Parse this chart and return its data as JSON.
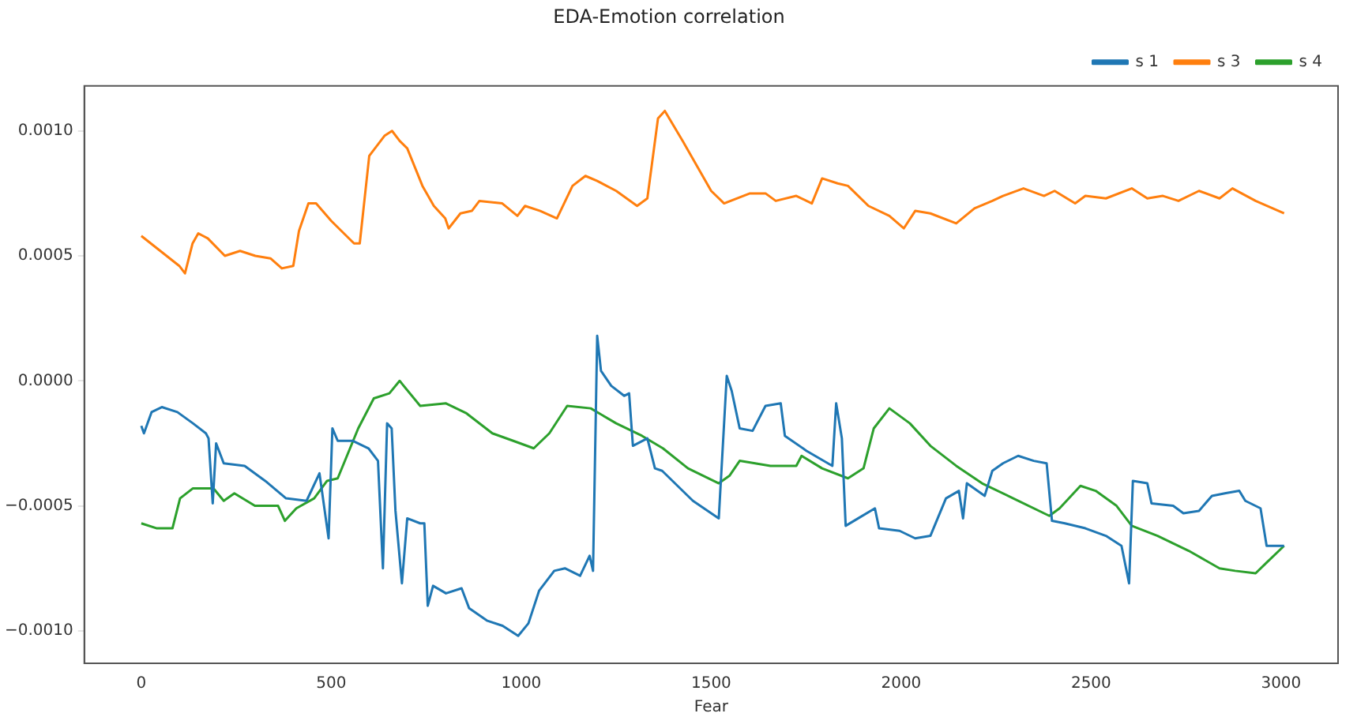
{
  "chart_data": {
    "type": "line",
    "title": "EDA-Emotion correlation",
    "xlabel": "Fear",
    "xlim": [
      -150,
      3150
    ],
    "xticks": [
      0,
      500,
      1000,
      1500,
      2000,
      2500,
      3000
    ],
    "ylim": [
      -0.00113,
      0.00118
    ],
    "yticks": [
      {
        "value": -0.001,
        "label": "−0.0010"
      },
      {
        "value": -0.0005,
        "label": "−0.0005"
      },
      {
        "value": 0,
        "label": "0.0000"
      },
      {
        "value": 0.0005,
        "label": "0.0005"
      },
      {
        "value": 0.001,
        "label": "0.0010"
      }
    ],
    "grid": false,
    "legend": "top right",
    "marker": "none",
    "line_style": "solid",
    "series": [
      {
        "name": "s 1",
        "color": "#1f77b4",
        "x": [
          0,
          7,
          27,
          54,
          95,
          136,
          170,
          177,
          188,
          197,
          217,
          272,
          326,
          381,
          435,
          469,
          493,
          503,
          517,
          557,
          598,
          623,
          636,
          647,
          659,
          669,
          686,
          700,
          734,
          745,
          754,
          768,
          802,
          843,
          863,
          911,
          951,
          992,
          1019,
          1047,
          1087,
          1115,
          1155,
          1180,
          1189,
          1200,
          1210,
          1237,
          1271,
          1284,
          1294,
          1332,
          1352,
          1371,
          1452,
          1520,
          1541,
          1554,
          1575,
          1609,
          1643,
          1683,
          1694,
          1751,
          1819,
          1829,
          1844,
          1854,
          1887,
          1931,
          1942,
          1996,
          2037,
          2077,
          2118,
          2152,
          2163,
          2173,
          2220,
          2240,
          2268,
          2308,
          2349,
          2383,
          2397,
          2431,
          2485,
          2539,
          2580,
          2600,
          2610,
          2648,
          2659,
          2716,
          2743,
          2784,
          2818,
          2852,
          2890,
          2906,
          2946,
          2962,
          3008
        ],
        "values": [
          -0.00018,
          -0.00021,
          -0.000125,
          -0.000105,
          -0.000125,
          -0.00017,
          -0.00021,
          -0.00023,
          -0.00049,
          -0.00025,
          -0.00033,
          -0.00034,
          -0.0004,
          -0.00047,
          -0.00048,
          -0.00037,
          -0.00063,
          -0.00019,
          -0.00024,
          -0.00024,
          -0.00027,
          -0.00032,
          -0.00075,
          -0.00017,
          -0.00019,
          -0.00052,
          -0.00081,
          -0.00055,
          -0.00057,
          -0.00057,
          -0.0009,
          -0.00082,
          -0.00085,
          -0.00083,
          -0.00091,
          -0.00096,
          -0.00098,
          -0.00102,
          -0.00097,
          -0.00084,
          -0.00076,
          -0.00075,
          -0.00078,
          -0.0007,
          -0.00076,
          0.00018,
          4e-05,
          -2e-05,
          -6e-05,
          -5e-05,
          -0.00026,
          -0.00023,
          -0.00035,
          -0.00036,
          -0.00048,
          -0.00055,
          2e-05,
          -4e-05,
          -0.00019,
          -0.0002,
          -0.0001,
          -9e-05,
          -0.00022,
          -0.00028,
          -0.00034,
          -9e-05,
          -0.00023,
          -0.00058,
          -0.00055,
          -0.00051,
          -0.00059,
          -0.0006,
          -0.00063,
          -0.00062,
          -0.00047,
          -0.00044,
          -0.00055,
          -0.00041,
          -0.00046,
          -0.00036,
          -0.00033,
          -0.0003,
          -0.00032,
          -0.00033,
          -0.00056,
          -0.00057,
          -0.00059,
          -0.00062,
          -0.00066,
          -0.00081,
          -0.0004,
          -0.00041,
          -0.00049,
          -0.0005,
          -0.00053,
          -0.00052,
          -0.00046,
          -0.00045,
          -0.00044,
          -0.00048,
          -0.00051,
          -0.00066,
          -0.00066
        ]
      },
      {
        "name": "s 3",
        "color": "#ff7f0e",
        "x": [
          0,
          50,
          100,
          115,
          135,
          150,
          175,
          220,
          260,
          300,
          340,
          370,
          400,
          415,
          440,
          460,
          500,
          540,
          560,
          575,
          600,
          640,
          660,
          680,
          700,
          740,
          770,
          800,
          809,
          840,
          870,
          890,
          950,
          990,
          1010,
          1050,
          1094,
          1135,
          1169,
          1200,
          1250,
          1305,
          1332,
          1360,
          1378,
          1425,
          1500,
          1534,
          1602,
          1643,
          1670,
          1724,
          1765,
          1792,
          1833,
          1860,
          1914,
          1969,
          2007,
          2037,
          2077,
          2145,
          2193,
          2240,
          2268,
          2322,
          2376,
          2404,
          2458,
          2485,
          2539,
          2607,
          2648,
          2689,
          2730,
          2784,
          2838,
          2872,
          2933,
          3008
        ],
        "values": [
          0.00058,
          0.00052,
          0.00046,
          0.00043,
          0.00055,
          0.00059,
          0.00057,
          0.0005,
          0.00052,
          0.0005,
          0.00049,
          0.00045,
          0.00046,
          0.0006,
          0.00071,
          0.00071,
          0.00064,
          0.00058,
          0.00055,
          0.00055,
          0.0009,
          0.00098,
          0.001,
          0.00096,
          0.00093,
          0.00078,
          0.0007,
          0.00065,
          0.00061,
          0.00067,
          0.00068,
          0.00072,
          0.00071,
          0.00066,
          0.0007,
          0.00068,
          0.00065,
          0.00078,
          0.00082,
          0.0008,
          0.00076,
          0.0007,
          0.00073,
          0.00105,
          0.00108,
          0.00096,
          0.00076,
          0.00071,
          0.00075,
          0.00075,
          0.00072,
          0.00074,
          0.00071,
          0.00081,
          0.00079,
          0.00078,
          0.0007,
          0.00066,
          0.00061,
          0.00068,
          0.00067,
          0.00063,
          0.00069,
          0.00072,
          0.00074,
          0.00077,
          0.00074,
          0.00076,
          0.00071,
          0.00074,
          0.00073,
          0.00077,
          0.00073,
          0.00074,
          0.00072,
          0.00076,
          0.00073,
          0.00077,
          0.00072,
          0.00067
        ]
      },
      {
        "name": "s 4",
        "color": "#2ca02c",
        "x": [
          0,
          41,
          82,
          102,
          136,
          190,
          217,
          245,
          299,
          360,
          378,
          408,
          455,
          489,
          517,
          571,
          612,
          653,
          680,
          734,
          802,
          856,
          924,
          979,
          1033,
          1074,
          1121,
          1183,
          1250,
          1318,
          1373,
          1439,
          1520,
          1548,
          1575,
          1656,
          1724,
          1738,
          1792,
          1860,
          1901,
          1928,
          1969,
          2023,
          2077,
          2145,
          2213,
          2295,
          2390,
          2417,
          2472,
          2512,
          2567,
          2607,
          2675,
          2757,
          2838,
          2879,
          2933,
          2960,
          3008
        ],
        "values": [
          -0.00057,
          -0.00059,
          -0.00059,
          -0.00047,
          -0.00043,
          -0.00043,
          -0.00048,
          -0.00045,
          -0.0005,
          -0.0005,
          -0.00056,
          -0.00051,
          -0.00047,
          -0.0004,
          -0.00039,
          -0.00019,
          -7e-05,
          -5e-05,
          0,
          -0.0001,
          -9e-05,
          -0.00013,
          -0.00021,
          -0.00024,
          -0.00027,
          -0.00021,
          -0.0001,
          -0.00011,
          -0.00017,
          -0.00022,
          -0.00027,
          -0.00035,
          -0.00041,
          -0.00038,
          -0.00032,
          -0.00034,
          -0.00034,
          -0.0003,
          -0.00035,
          -0.00039,
          -0.00035,
          -0.00019,
          -0.00011,
          -0.00017,
          -0.00026,
          -0.00034,
          -0.00041,
          -0.00047,
          -0.00054,
          -0.00051,
          -0.00042,
          -0.00044,
          -0.0005,
          -0.00058,
          -0.00062,
          -0.00068,
          -0.00075,
          -0.00076,
          -0.00077,
          -0.00073,
          -0.00066
        ]
      }
    ]
  }
}
